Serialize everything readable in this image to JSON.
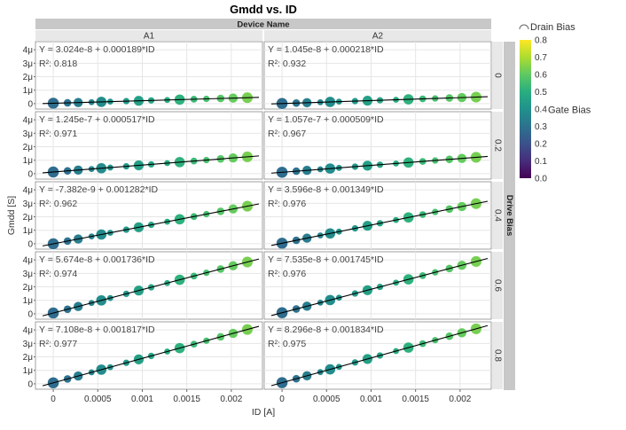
{
  "chart_data": {
    "type": "scatter",
    "title": "Gmdd vs. ID",
    "column_group_label": "Device Name",
    "columns": [
      "A1",
      "A2"
    ],
    "row_group_label": "Drive Bias",
    "rows": [
      "0",
      "0.2",
      "0.4",
      "0.6",
      "0.8"
    ],
    "xlabel": "ID [A]",
    "ylabel": "Gmdd [S]",
    "xlim": [
      -0.0002,
      0.00235
    ],
    "ylim": [
      -4e-07,
      4.6e-06
    ],
    "x_ticks": [
      0,
      0.0005,
      0.001,
      0.0015,
      0.002
    ],
    "x_tick_labels": [
      "0",
      "0.0005",
      "0.001",
      "0.0015",
      "0.002"
    ],
    "y_ticks": [
      0,
      1e-06,
      2e-06,
      3e-06,
      4e-06
    ],
    "y_tick_labels": [
      "0",
      "1μ",
      "2μ",
      "3μ",
      "4μ"
    ],
    "color_by": "Gate Bias",
    "size_by": "Drain Bias",
    "color_legend_title": "Gate Bias",
    "size_legend_title": "Drain Bias",
    "color_scale_labels": [
      "0.8",
      "0.7",
      "0.6",
      "0.5",
      "0.4",
      "0.3",
      "0.2",
      "0.1",
      "0.0"
    ],
    "panels": [
      {
        "device": "A1",
        "drive_bias": "0",
        "fit": "Y = 3.024e-8 + 0.000189*ID",
        "r2": "R²: 0.818",
        "intercept": 3.024e-08,
        "slope": 0.000189
      },
      {
        "device": "A2",
        "drive_bias": "0",
        "fit": "Y = 1.045e-8 + 0.000218*ID",
        "r2": "R²: 0.932",
        "intercept": 1.045e-08,
        "slope": 0.000218
      },
      {
        "device": "A1",
        "drive_bias": "0.2",
        "fit": "Y = 1.245e-7 + 0.000517*ID",
        "r2": "R²: 0.971",
        "intercept": 1.245e-07,
        "slope": 0.000517
      },
      {
        "device": "A2",
        "drive_bias": "0.2",
        "fit": "Y = 1.057e-7 + 0.000509*ID",
        "r2": "R²: 0.967",
        "intercept": 1.057e-07,
        "slope": 0.000509
      },
      {
        "device": "A1",
        "drive_bias": "0.4",
        "fit": "Y = -7.382e-9 + 0.001282*ID",
        "r2": "R²: 0.962",
        "intercept": -7.382e-09,
        "slope": 0.001282
      },
      {
        "device": "A2",
        "drive_bias": "0.4",
        "fit": "Y = 3.596e-8 + 0.001349*ID",
        "r2": "R²: 0.976",
        "intercept": 3.596e-08,
        "slope": 0.001349
      },
      {
        "device": "A1",
        "drive_bias": "0.6",
        "fit": "Y = 5.674e-8 + 0.001736*ID",
        "r2": "R²: 0.974",
        "intercept": 5.674e-08,
        "slope": 0.001736
      },
      {
        "device": "A2",
        "drive_bias": "0.6",
        "fit": "Y = 7.535e-8 + 0.001745*ID",
        "r2": "R²: 0.976",
        "intercept": 7.535e-08,
        "slope": 0.001745
      },
      {
        "device": "A1",
        "drive_bias": "0.8",
        "fit": "Y = 7.108e-8 + 0.001817*ID",
        "r2": "R²: 0.977",
        "intercept": 7.108e-08,
        "slope": 0.001817
      },
      {
        "device": "A2",
        "drive_bias": "0.8",
        "fit": "Y = 8.296e-8 + 0.001834*ID",
        "r2": "R²: 0.975",
        "intercept": 8.296e-08,
        "slope": 0.001834
      }
    ],
    "sample_points": [
      {
        "id": 0.0,
        "gate": 0.35,
        "size": 1.0
      },
      {
        "id": 0.00016,
        "gate": 0.37,
        "size": 0.55
      },
      {
        "id": 0.00028,
        "gate": 0.42,
        "size": 0.75
      },
      {
        "id": 0.00043,
        "gate": 0.45,
        "size": 0.35
      },
      {
        "id": 0.00054,
        "gate": 0.48,
        "size": 0.9
      },
      {
        "id": 0.00064,
        "gate": 0.51,
        "size": 0.35
      },
      {
        "id": 0.00082,
        "gate": 0.53,
        "size": 0.4
      },
      {
        "id": 0.00096,
        "gate": 0.56,
        "size": 0.85
      },
      {
        "id": 0.0011,
        "gate": 0.58,
        "size": 0.4
      },
      {
        "id": 0.00128,
        "gate": 0.61,
        "size": 0.35
      },
      {
        "id": 0.00142,
        "gate": 0.64,
        "size": 0.9
      },
      {
        "id": 0.00158,
        "gate": 0.67,
        "size": 0.45
      },
      {
        "id": 0.00172,
        "gate": 0.7,
        "size": 0.4
      },
      {
        "id": 0.00188,
        "gate": 0.73,
        "size": 0.55
      },
      {
        "id": 0.00202,
        "gate": 0.76,
        "size": 0.75
      },
      {
        "id": 0.00218,
        "gate": 0.79,
        "size": 0.95
      }
    ]
  }
}
